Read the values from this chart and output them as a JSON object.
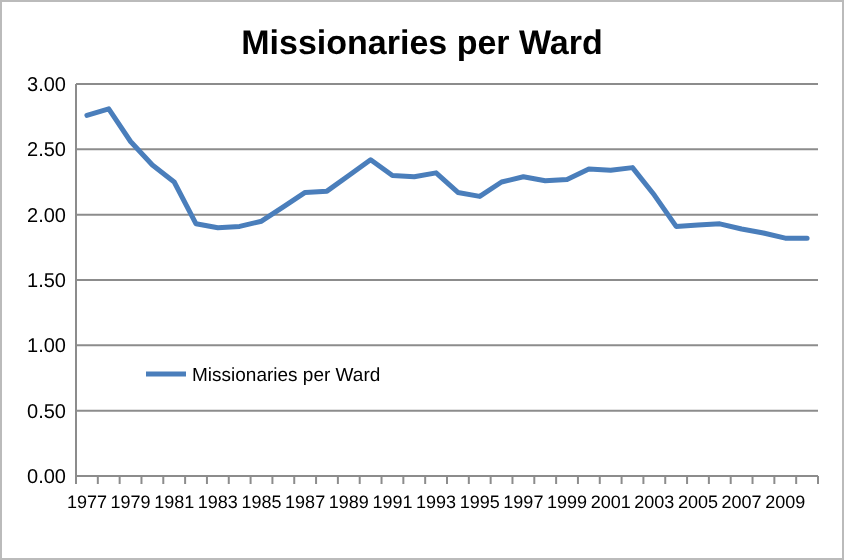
{
  "chart_data": {
    "type": "line",
    "title": "Missionaries per Ward",
    "categories": [
      "1977",
      null,
      "1979",
      null,
      "1981",
      null,
      "1983",
      null,
      "1985",
      null,
      "1987",
      null,
      "1989",
      null,
      "1991",
      null,
      "1993",
      null,
      "1995",
      null,
      "1997",
      null,
      "1999",
      null,
      "2001",
      null,
      "2003",
      null,
      "2005",
      null,
      "2007",
      null,
      "2009",
      null
    ],
    "series": [
      {
        "name": "Missionaries per Ward",
        "color": "#4a7ebb",
        "values": [
          2.76,
          2.81,
          2.56,
          2.38,
          2.25,
          1.93,
          1.9,
          1.91,
          1.95,
          2.06,
          2.17,
          2.18,
          2.3,
          2.42,
          2.3,
          2.29,
          2.32,
          2.17,
          2.14,
          2.25,
          2.29,
          2.26,
          2.27,
          2.35,
          2.34,
          2.36,
          2.15,
          1.91,
          1.92,
          1.93,
          1.89,
          1.86,
          1.82,
          1.82
        ]
      }
    ],
    "ylim": [
      0,
      3
    ],
    "yticks": [
      {
        "value": 0,
        "label": "0.00"
      },
      {
        "value": 0.5,
        "label": "0.50"
      },
      {
        "value": 1,
        "label": "1.00"
      },
      {
        "value": 1.5,
        "label": "1.50"
      },
      {
        "value": 2,
        "label": "2.00"
      },
      {
        "value": 2.5,
        "label": "2.50"
      },
      {
        "value": 3,
        "label": "3.00"
      }
    ],
    "grid": "y",
    "legend": "left",
    "marker": "none",
    "line_style": "solid"
  }
}
